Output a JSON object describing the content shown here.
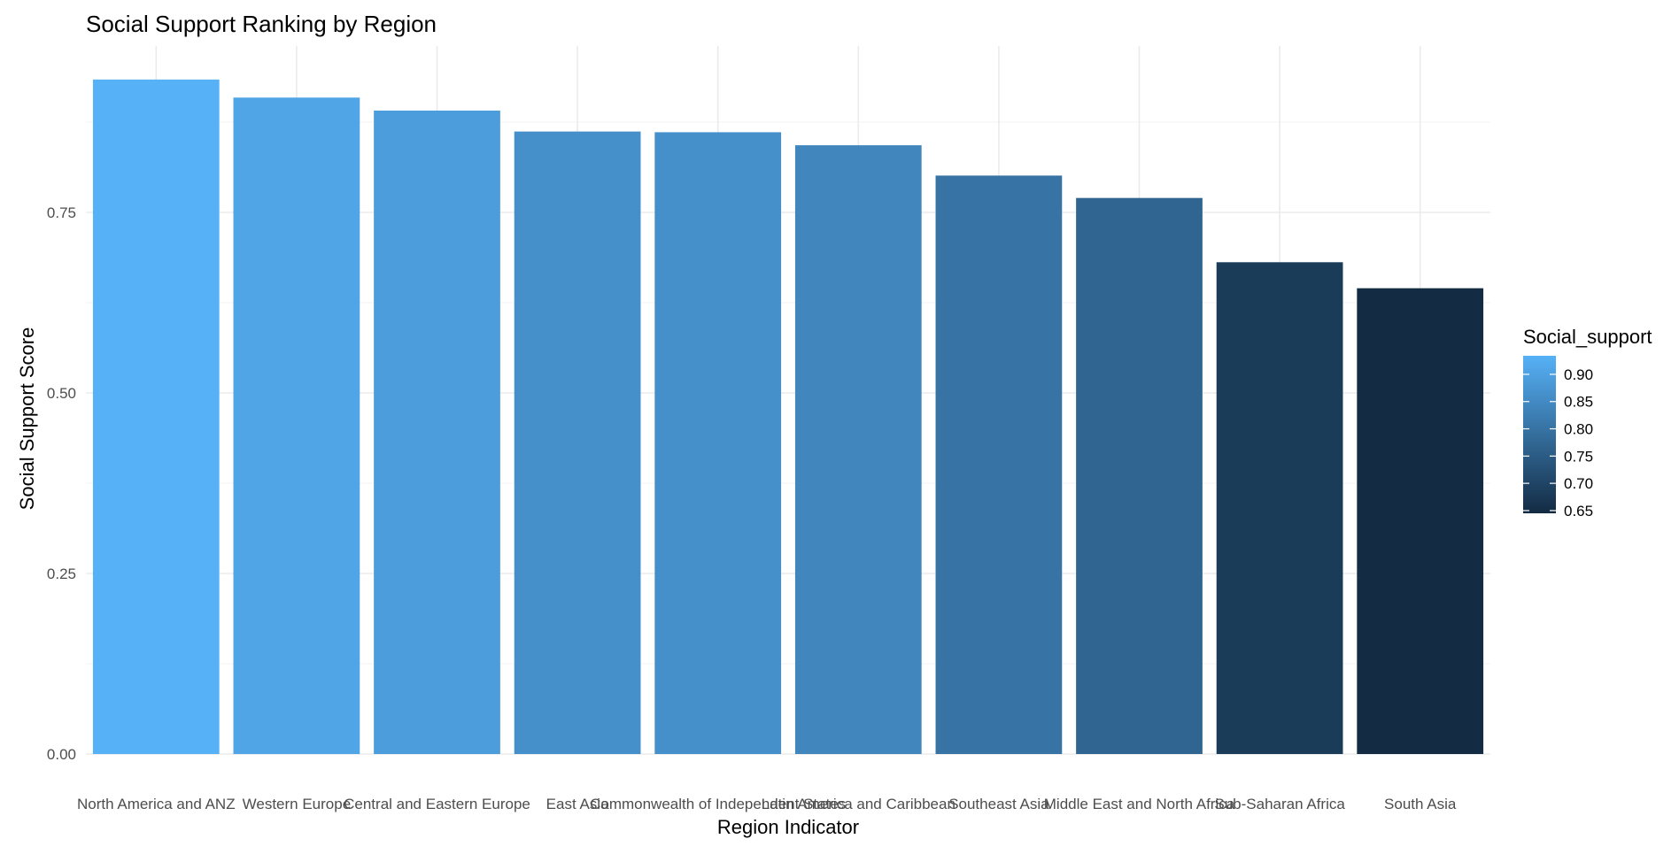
{
  "chart_data": {
    "type": "bar",
    "title": "Social Support Ranking by Region",
    "xlabel": "Region Indicator",
    "ylabel": "Social Support Score",
    "categories": [
      "North America and ANZ",
      "Western Europe",
      "Central and Eastern Europe",
      "East Asia",
      "Commonwealth of Independent States",
      "Latin America and Caribbean",
      "Southeast Asia",
      "Middle East and North Africa",
      "Sub-Saharan Africa",
      "South Asia"
    ],
    "values": [
      0.934,
      0.909,
      0.891,
      0.862,
      0.861,
      0.843,
      0.801,
      0.77,
      0.681,
      0.645
    ],
    "ylim": [
      0,
      0.98
    ],
    "yticks": [
      0.0,
      0.25,
      0.5,
      0.75
    ],
    "ytick_labels": [
      "0.00",
      "0.25",
      "0.50",
      "0.75"
    ],
    "grid": true,
    "legend": {
      "title": "Social_support",
      "placement": "right",
      "type": "colorbar",
      "range": [
        0.645,
        0.934
      ],
      "ticks": [
        0.65,
        0.7,
        0.75,
        0.8,
        0.85,
        0.9
      ],
      "tick_labels": [
        "0.65",
        "0.70",
        "0.75",
        "0.80",
        "0.85",
        "0.90"
      ],
      "color_low": "#132B43",
      "color_high": "#56B1F7"
    }
  }
}
